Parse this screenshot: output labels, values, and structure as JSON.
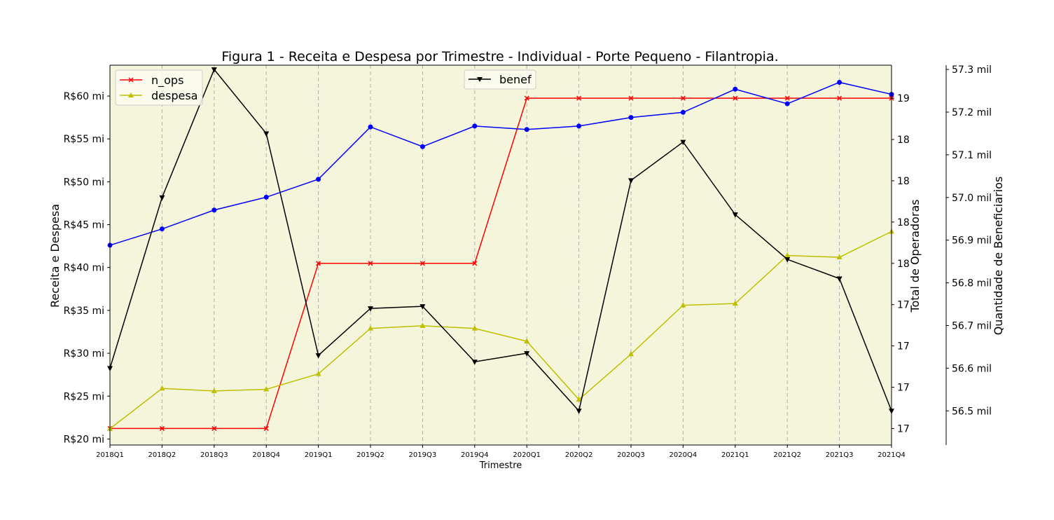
{
  "chart_data": {
    "type": "line",
    "title": "Figura 1 - Receita e Despesa por Trimestre - Individual - Porte Pequeno - Filantropia.",
    "xlabel": "Trimestre",
    "categories": [
      "2018Q1",
      "2018Q2",
      "2018Q3",
      "2018Q4",
      "2019Q1",
      "2019Q2",
      "2019Q3",
      "2019Q4",
      "2020Q1",
      "2020Q2",
      "2020Q3",
      "2020Q4",
      "2021Q1",
      "2021Q2",
      "2021Q3",
      "2021Q4"
    ],
    "background_color": "#f5f5dc",
    "grid": "vertical dashed",
    "axes": {
      "left": {
        "label": "Receita e Despesa",
        "ylim": [
          19.3,
          63.6
        ],
        "ticks": [
          20,
          25,
          30,
          35,
          40,
          45,
          50,
          55,
          60
        ],
        "tick_labels": [
          "R$20 mi",
          "R$25 mi",
          "R$30 mi",
          "R$35 mi",
          "R$40 mi",
          "R$45 mi",
          "R$50 mi",
          "R$55 mi",
          "R$60 mi"
        ]
      },
      "right1": {
        "label": "Total de Operadoras",
        "ylim": [
          16.9,
          19.2
        ],
        "ticks": [
          17,
          17.25,
          17.5,
          17.75,
          18,
          18.25,
          18.5,
          18.75,
          19
        ],
        "tick_labels": [
          "17",
          "17",
          "17",
          "17",
          "18",
          "18",
          "18",
          "18",
          "19"
        ]
      },
      "right2": {
        "label": "Quantidade de Beneficiarios",
        "ylim": [
          56.42,
          57.31
        ],
        "ticks": [
          56.5,
          56.6,
          56.7,
          56.8,
          56.9,
          57.0,
          57.1,
          57.2,
          57.3
        ],
        "tick_labels": [
          "56.5 mil",
          "56.6 mil",
          "56.7 mil",
          "56.8 mil",
          "56.9 mil",
          "57.0 mil",
          "57.1 mil",
          "57.2 mil",
          "57.3 mil"
        ]
      }
    },
    "series": [
      {
        "axis": "left",
        "color": "#0000ff",
        "marker": "circle",
        "values": [
          42.6,
          44.5,
          46.7,
          48.2,
          50.3,
          56.4,
          54.1,
          56.5,
          56.1,
          56.5,
          57.5,
          58.1,
          60.8,
          59.1,
          61.6,
          60.2
        ]
      },
      {
        "name": "despesa",
        "axis": "left",
        "color": "#bfbf00",
        "marker": "triangle-up",
        "values": [
          21.2,
          25.9,
          25.6,
          25.8,
          27.6,
          32.9,
          33.2,
          32.9,
          31.4,
          24.6,
          29.9,
          35.6,
          35.8,
          41.4,
          41.2,
          44.2
        ]
      },
      {
        "name": "n_ops",
        "axis": "right1",
        "color": "#ff0000",
        "marker": "x",
        "values": [
          17,
          17,
          17,
          17,
          18,
          18,
          18,
          18,
          19,
          19,
          19,
          19,
          19,
          19,
          19,
          19
        ]
      },
      {
        "name": "benef",
        "axis": "right2",
        "color": "#000000",
        "marker": "triangle-down",
        "values": [
          56.6,
          57.0,
          57.3,
          57.15,
          56.63,
          56.74,
          56.745,
          56.615,
          56.635,
          56.5,
          57.04,
          57.13,
          56.96,
          56.855,
          56.81,
          56.5
        ]
      }
    ],
    "legends": [
      {
        "position": "upper-left",
        "entries": [
          "n_ops",
          "despesa"
        ]
      },
      {
        "position": "upper-center",
        "entries": [
          "benef"
        ]
      }
    ]
  }
}
